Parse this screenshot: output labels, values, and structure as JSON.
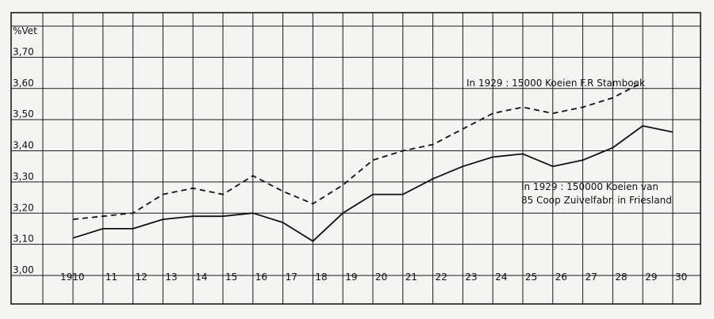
{
  "chart_data": {
    "type": "line",
    "title": "",
    "ylabel": "%Vet",
    "xlabel": "",
    "x": [
      1910,
      1911,
      1912,
      1913,
      1914,
      1915,
      1916,
      1917,
      1918,
      1919,
      1920,
      1921,
      1922,
      1923,
      1924,
      1925,
      1926,
      1927,
      1928,
      1929,
      1930
    ],
    "x_tick_labels": [
      "1910",
      "11",
      "12",
      "13",
      "14",
      "15",
      "16",
      "17",
      "18",
      "19",
      "20",
      "21",
      "22",
      "23",
      "24",
      "25",
      "26",
      "27",
      "28",
      "29",
      "30"
    ],
    "y_tick_labels": [
      "3,00",
      "3,10",
      "3,20",
      "3,30",
      "3,40",
      "3,50",
      "3,60",
      "3,70"
    ],
    "y_ticks": [
      3.0,
      3.1,
      3.2,
      3.3,
      3.4,
      3.5,
      3.6,
      3.7
    ],
    "xlim": [
      1910,
      1930
    ],
    "ylim": [
      3.0,
      3.8
    ],
    "grid": true,
    "series": [
      {
        "style": "dashed",
        "color": "#111111",
        "x": [
          1910,
          1911,
          1912,
          1913,
          1914,
          1915,
          1916,
          1917,
          1918,
          1919,
          1920,
          1921,
          1922,
          1923,
          1924,
          1925,
          1926,
          1927,
          1928,
          1929
        ],
        "values": [
          3.18,
          3.19,
          3.2,
          3.26,
          3.28,
          3.26,
          3.32,
          3.27,
          3.23,
          3.29,
          3.37,
          3.4,
          3.42,
          3.47,
          3.52,
          3.54,
          3.52,
          3.54,
          3.57,
          3.62
        ]
      },
      {
        "style": "solid",
        "color": "#111111",
        "x": [
          1910,
          1911,
          1912,
          1913,
          1914,
          1915,
          1916,
          1917,
          1918,
          1919,
          1920,
          1921,
          1922,
          1923,
          1924,
          1925,
          1926,
          1927,
          1928,
          1929,
          1930
        ],
        "values": [
          3.12,
          3.15,
          3.15,
          3.18,
          3.19,
          3.19,
          3.2,
          3.17,
          3.11,
          3.2,
          3.26,
          3.26,
          3.31,
          3.35,
          3.38,
          3.39,
          3.35,
          3.37,
          3.41,
          3.48,
          3.46
        ]
      }
    ],
    "annotations": [
      {
        "text": "In 1929 : 15000 Koeien F.R Stamboek"
      },
      {
        "text": "In 1929 : 150000 Koeien van"
      },
      {
        "text": "85 Coop Zuivelfabr. in Friesland"
      }
    ]
  }
}
